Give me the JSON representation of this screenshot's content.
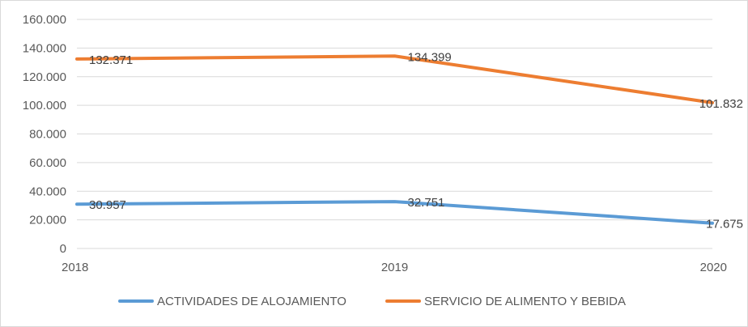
{
  "chart_data": {
    "type": "line",
    "categories": [
      "2018",
      "2019",
      "2020"
    ],
    "ylim": [
      0,
      160000
    ],
    "yticks": [
      0,
      20000,
      40000,
      60000,
      80000,
      100000,
      120000,
      140000,
      160000
    ],
    "ytick_labels": [
      "0",
      "20.000",
      "40.000",
      "60.000",
      "80.000",
      "100.000",
      "120.000",
      "140.000",
      "160.000"
    ],
    "grid": true,
    "legend_position": "bottom",
    "series": [
      {
        "name": "ACTIVIDADES DE ALOJAMIENTO",
        "color": "#5b9bd5",
        "values": [
          30957,
          32751,
          17675
        ],
        "labels": [
          "30.957",
          "32.751",
          "17.675"
        ]
      },
      {
        "name": "SERVICIO DE ALIMENTO Y BEBIDA",
        "color": "#ed7d31",
        "values": [
          132371,
          134399,
          101832
        ],
        "labels": [
          "132.371",
          "134.399",
          "101.832"
        ]
      }
    ]
  }
}
